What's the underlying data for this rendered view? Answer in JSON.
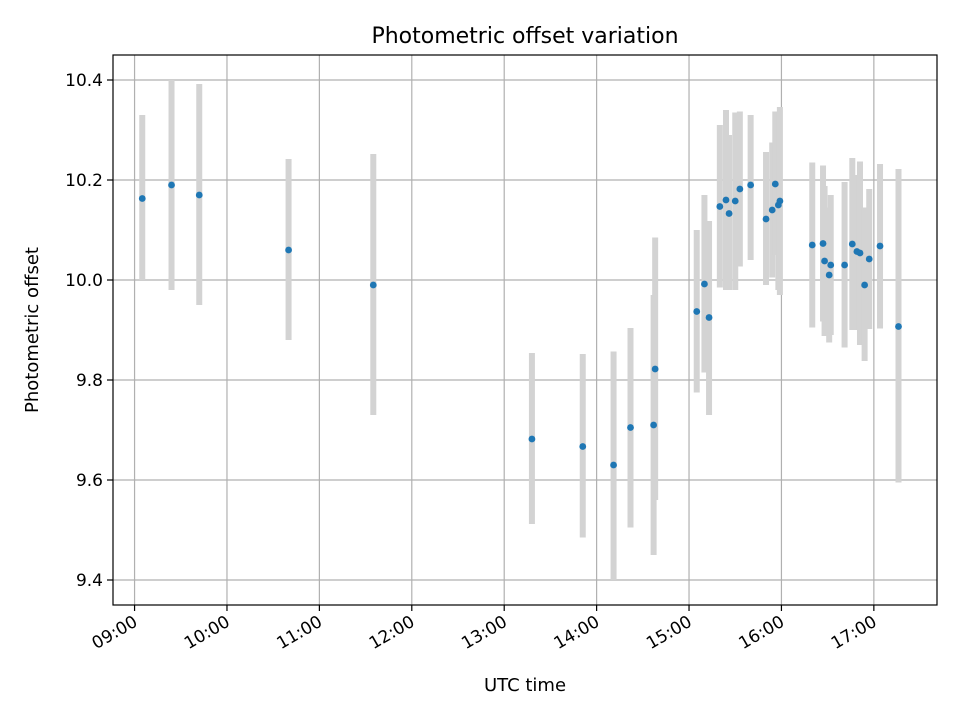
{
  "chart_data": {
    "type": "scatter",
    "title": "Photometric offset variation",
    "xlabel": "UTC time",
    "ylabel": "Photometric offset",
    "xlim": [
      "08:46",
      "17:41"
    ],
    "ylim": [
      9.35,
      10.45
    ],
    "xticks": [
      "09:00",
      "10:00",
      "11:00",
      "12:00",
      "13:00",
      "14:00",
      "15:00",
      "16:00",
      "17:00"
    ],
    "yticks": [
      "9.4",
      "9.6",
      "9.8",
      "10.0",
      "10.2",
      "10.4"
    ],
    "grid": true,
    "colors": {
      "point": "#1f77b4",
      "errorbar": "#d3d3d3",
      "grid": "#b0b0b0"
    },
    "points": [
      {
        "x": "09:05",
        "y": 10.163,
        "ylo": 10.0,
        "yhi": 10.33
      },
      {
        "x": "09:24",
        "y": 10.19,
        "ylo": 9.98,
        "yhi": 10.4
      },
      {
        "x": "09:42",
        "y": 10.17,
        "ylo": 9.95,
        "yhi": 10.392
      },
      {
        "x": "10:40",
        "y": 10.06,
        "ylo": 9.88,
        "yhi": 10.242
      },
      {
        "x": "11:35",
        "y": 9.99,
        "ylo": 9.73,
        "yhi": 10.252
      },
      {
        "x": "13:18",
        "y": 9.682,
        "ylo": 9.512,
        "yhi": 9.854
      },
      {
        "x": "13:51",
        "y": 9.667,
        "ylo": 9.485,
        "yhi": 9.852
      },
      {
        "x": "14:11",
        "y": 9.63,
        "ylo": 9.4,
        "yhi": 9.857
      },
      {
        "x": "14:22",
        "y": 9.705,
        "ylo": 9.505,
        "yhi": 9.904
      },
      {
        "x": "14:37",
        "y": 9.71,
        "ylo": 9.45,
        "yhi": 9.97
      },
      {
        "x": "14:38",
        "y": 9.822,
        "ylo": 9.56,
        "yhi": 10.085
      },
      {
        "x": "15:05",
        "y": 9.937,
        "ylo": 9.775,
        "yhi": 10.1
      },
      {
        "x": "15:10",
        "y": 9.992,
        "ylo": 9.815,
        "yhi": 10.17
      },
      {
        "x": "15:13",
        "y": 9.925,
        "ylo": 9.73,
        "yhi": 10.118
      },
      {
        "x": "15:20",
        "y": 10.147,
        "ylo": 9.985,
        "yhi": 10.31
      },
      {
        "x": "15:24",
        "y": 10.16,
        "ylo": 9.98,
        "yhi": 10.34
      },
      {
        "x": "15:26",
        "y": 10.133,
        "ylo": 9.98,
        "yhi": 10.29
      },
      {
        "x": "15:30",
        "y": 10.158,
        "ylo": 9.98,
        "yhi": 10.335
      },
      {
        "x": "15:33",
        "y": 10.182,
        "ylo": 10.027,
        "yhi": 10.337
      },
      {
        "x": "15:40",
        "y": 10.19,
        "ylo": 10.04,
        "yhi": 10.33
      },
      {
        "x": "15:50",
        "y": 10.122,
        "ylo": 9.99,
        "yhi": 10.256
      },
      {
        "x": "15:54",
        "y": 10.14,
        "ylo": 10.005,
        "yhi": 10.275
      },
      {
        "x": "15:56",
        "y": 10.192,
        "ylo": 10.05,
        "yhi": 10.337
      },
      {
        "x": "15:58",
        "y": 10.15,
        "ylo": 9.98,
        "yhi": 10.33
      },
      {
        "x": "15:59",
        "y": 10.158,
        "ylo": 9.97,
        "yhi": 10.346
      },
      {
        "x": "16:20",
        "y": 10.07,
        "ylo": 9.905,
        "yhi": 10.235
      },
      {
        "x": "16:27",
        "y": 10.073,
        "ylo": 9.917,
        "yhi": 10.229
      },
      {
        "x": "16:28",
        "y": 10.038,
        "ylo": 9.888,
        "yhi": 10.188
      },
      {
        "x": "16:31",
        "y": 10.01,
        "ylo": 9.875,
        "yhi": 10.145
      },
      {
        "x": "16:32",
        "y": 10.03,
        "ylo": 9.89,
        "yhi": 10.17
      },
      {
        "x": "16:41",
        "y": 10.03,
        "ylo": 9.865,
        "yhi": 10.196
      },
      {
        "x": "16:46",
        "y": 10.072,
        "ylo": 9.9,
        "yhi": 10.244
      },
      {
        "x": "16:49",
        "y": 10.057,
        "ylo": 9.9,
        "yhi": 10.21
      },
      {
        "x": "16:51",
        "y": 10.054,
        "ylo": 9.87,
        "yhi": 10.237
      },
      {
        "x": "16:54",
        "y": 9.99,
        "ylo": 9.838,
        "yhi": 10.145
      },
      {
        "x": "16:57",
        "y": 10.042,
        "ylo": 9.902,
        "yhi": 10.182
      },
      {
        "x": "17:04",
        "y": 10.068,
        "ylo": 9.903,
        "yhi": 10.232
      },
      {
        "x": "17:16",
        "y": 9.907,
        "ylo": 9.595,
        "yhi": 10.222
      }
    ]
  }
}
